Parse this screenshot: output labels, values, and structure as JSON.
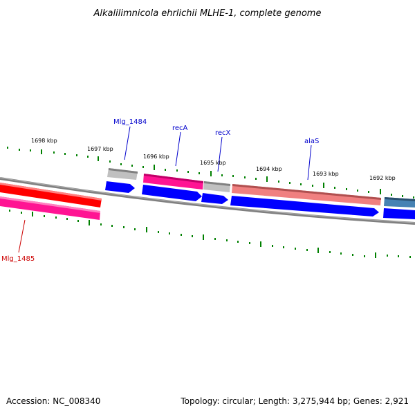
{
  "map": {
    "title": "Alkalilimnicola ehrlichii MLHE-1, complete genome",
    "accession": "Accession: NC_008340",
    "summary": "Topology: circular; Length: 3,275,944 bp; Genes: 2,921"
  },
  "tick_labels": [
    "1698 kbp",
    "1697 kbp",
    "1696 kbp",
    "1695 kbp",
    "1694 kbp",
    "1693 kbp",
    "1692 kbp"
  ],
  "gene_labels": [
    {
      "name": "Mlg_1484",
      "color": "#0000cc"
    },
    {
      "name": "recA",
      "color": "#0000cc"
    },
    {
      "name": "recX",
      "color": "#0000cc"
    },
    {
      "name": "alaS",
      "color": "#0000cc"
    },
    {
      "name": "Mlg_1485",
      "color": "#cc0000"
    }
  ],
  "colors": {
    "backbone": "#808080",
    "tick": "#008000",
    "cds_forward": "#0000ff",
    "gene_red": "#ff0000",
    "gene_pink": "#ff1493",
    "gene_salmon": "#f08080",
    "gene_gray": "#c0c0c0",
    "gene_steelblue": "#4682b4"
  }
}
